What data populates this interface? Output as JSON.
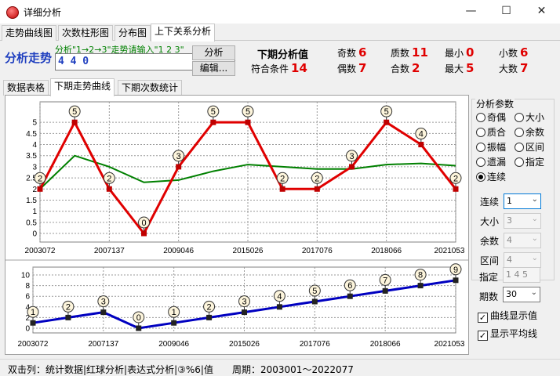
{
  "window": {
    "title": "详细分析",
    "minimize": "—",
    "maximize": "☐",
    "close": "✕"
  },
  "main_tabs": [
    "走势曲线图",
    "次数柱形图",
    "分布图",
    "上下关系分析"
  ],
  "analysis": {
    "label": "分析走势",
    "hint": "分析\"1→2→3\"走势请输入\"1 2 3\"",
    "input_value": "4 4 0",
    "analyze_button": "分析",
    "edit_button": "编辑..."
  },
  "stats": {
    "next_value_label": "下期分析值",
    "match_label": "符合条件",
    "match": "14",
    "odd_label": "奇数",
    "odd": "6",
    "even_label": "偶数",
    "even": "7",
    "prime_label": "质数",
    "prime": "11",
    "composite_label": "合数",
    "composite": "2",
    "min_label": "最小",
    "min": "0",
    "max_label": "最大",
    "max": "5",
    "small_label": "小数",
    "small": "6",
    "big_label": "大数",
    "big": "7"
  },
  "sub_tabs": [
    "数据表格",
    "下期走势曲线",
    "下期次数统计"
  ],
  "params": {
    "title": "分析参数",
    "radios": [
      "奇偶",
      "大小",
      "质合",
      "余数",
      "振幅",
      "区间",
      "遗漏",
      "指定",
      "连续"
    ],
    "selected": "连续",
    "consecutive_label": "连续",
    "consecutive_value": "1",
    "size_label": "大小",
    "size_value": "3",
    "remainder_label": "余数",
    "remainder_value": "4",
    "interval_label": "区间",
    "interval_value": "4",
    "specified_label": "指定",
    "specified_value": "1 4 5",
    "period_label": "期数",
    "period_value": "30",
    "show_values_label": "曲线显示值",
    "show_average_label": "显示平均线"
  },
  "status": {
    "double_click": "双击列：统计数据|红球分析|表达式分析|③%6|值",
    "period": "周期：2003001～2022077"
  },
  "chart_data": [
    {
      "type": "line",
      "x_tick_labels": [
        "2003072",
        "2007137",
        "2009046",
        "2015026",
        "2017076",
        "2018066",
        "2021053"
      ],
      "ylim": [
        0,
        5.5
      ],
      "y_ticks": [
        0,
        0.5,
        1,
        1.5,
        2,
        2.5,
        3,
        3.5,
        4,
        4.5,
        5
      ],
      "grid": true,
      "series": [
        {
          "values": [
            2,
            5,
            2,
            0,
            3,
            5,
            5,
            2,
            2,
            3,
            5,
            4,
            2
          ],
          "color": "#e00000"
        },
        {
          "values": [
            2.0,
            3.5,
            3.0,
            2.3,
            2.4,
            2.8,
            3.1,
            3.0,
            2.9,
            2.9,
            3.1,
            3.15,
            3.05
          ],
          "color": "#008000"
        }
      ]
    },
    {
      "type": "line",
      "x_tick_labels": [
        "2003072",
        "2007137",
        "2009046",
        "2015026",
        "2017076",
        "2018066",
        "2021053"
      ],
      "ylim": [
        0,
        10
      ],
      "y_ticks": [
        0,
        2,
        4,
        6,
        8,
        10
      ],
      "grid": true,
      "series": [
        {
          "values": [
            1,
            2,
            3,
            0,
            1,
            2,
            3,
            4,
            5,
            6,
            7,
            8,
            9
          ],
          "color": "#0000c0"
        }
      ]
    }
  ]
}
